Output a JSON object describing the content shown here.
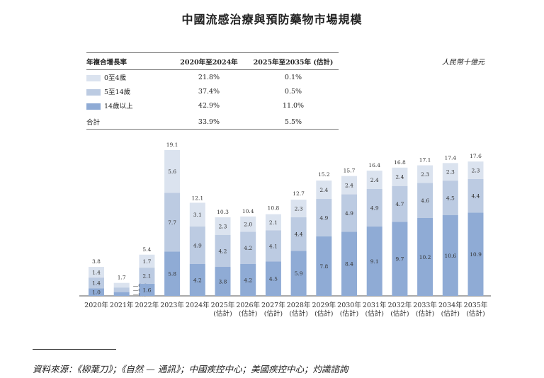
{
  "title": "中國流感治療與預防藥物市場規模",
  "unit": "人民幣十億元",
  "cagr_table": {
    "headers": [
      "年複合增長率",
      "2020年至2024年",
      "2025年至2035年 (估計)"
    ],
    "rows": [
      {
        "label": "0至4歲",
        "a": "21.8%",
        "b": "0.1%",
        "color": "#dbe3ef"
      },
      {
        "label": "5至14歲",
        "a": "37.4%",
        "b": "0.5%",
        "color": "#bccbe2"
      },
      {
        "label": "14歲以上",
        "a": "42.9%",
        "b": "11.0%",
        "color": "#8fabd5"
      }
    ],
    "total": {
      "label": "合計",
      "a": "33.9%",
      "b": "5.5%"
    }
  },
  "chart_data": {
    "type": "bar",
    "stacked": true,
    "categories": [
      "2020年",
      "2021年",
      "2022年",
      "2023年",
      "2024年",
      "2025年",
      "2026年",
      "2027年",
      "2028年",
      "2029年",
      "2030年",
      "2031年",
      "2032年",
      "2033年",
      "2034年",
      "2035年"
    ],
    "sublabels": [
      "",
      "",
      "",
      "",
      "",
      "(估計)",
      "(估計)",
      "(估計)",
      "(估計)",
      "(估計)",
      "(估計)",
      "(估計)",
      "(估計)",
      "(估計)",
      "(估計)",
      "(估計)"
    ],
    "series": [
      {
        "name": "14歲以上",
        "values": [
          1.0,
          0.5,
          1.6,
          5.8,
          4.2,
          3.8,
          4.2,
          4.5,
          5.9,
          7.8,
          8.4,
          9.1,
          9.7,
          10.2,
          10.6,
          10.9
        ],
        "color": "#8fabd5"
      },
      {
        "name": "5至14歲",
        "values": [
          1.4,
          0.6,
          2.1,
          7.7,
          4.9,
          4.2,
          4.2,
          4.1,
          4.4,
          4.9,
          4.9,
          4.9,
          4.7,
          4.6,
          4.5,
          4.4
        ],
        "color": "#bccbe2"
      },
      {
        "name": "0至4歲",
        "values": [
          1.4,
          0.6,
          1.7,
          5.6,
          3.1,
          2.3,
          2.0,
          2.1,
          2.3,
          2.4,
          2.4,
          2.4,
          2.4,
          2.3,
          2.3,
          2.3
        ],
        "color": "#dbe3ef"
      }
    ],
    "totals": [
      3.8,
      1.7,
      5.4,
      19.1,
      12.1,
      10.3,
      10.4,
      10.8,
      12.7,
      15.2,
      15.7,
      16.4,
      16.8,
      17.1,
      17.4,
      17.6
    ],
    "value_labels": [
      [
        "1.0",
        "0.5",
        "1.6",
        "5.8",
        "4.2",
        "3.8",
        "4.2",
        "4.5",
        "5.9",
        "7.8",
        "8.4",
        "9.1",
        "9.7",
        "10.2",
        "10.6",
        "10.9"
      ],
      [
        "1.4",
        "0.6",
        "2.1",
        "7.7",
        "4.9",
        "4.2",
        "4.2",
        "4.1",
        "4.4",
        "4.9",
        "4.9",
        "4.9",
        "4.7",
        "4.6",
        "4.5",
        "4.4"
      ],
      [
        "1.4",
        "0.6",
        "1.7",
        "5.6",
        "3.1",
        "2.3",
        "2.0",
        "2.1",
        "2.3",
        "2.4",
        "2.4",
        "2.4",
        "2.4",
        "2.3",
        "2.3",
        "2.3"
      ]
    ],
    "ylim": [
      0,
      19.1
    ]
  },
  "source": "資料來源：《柳葉刀》；《自然 — 通訊》；中國疾控中心；美國疾控中心；灼識諮詢"
}
